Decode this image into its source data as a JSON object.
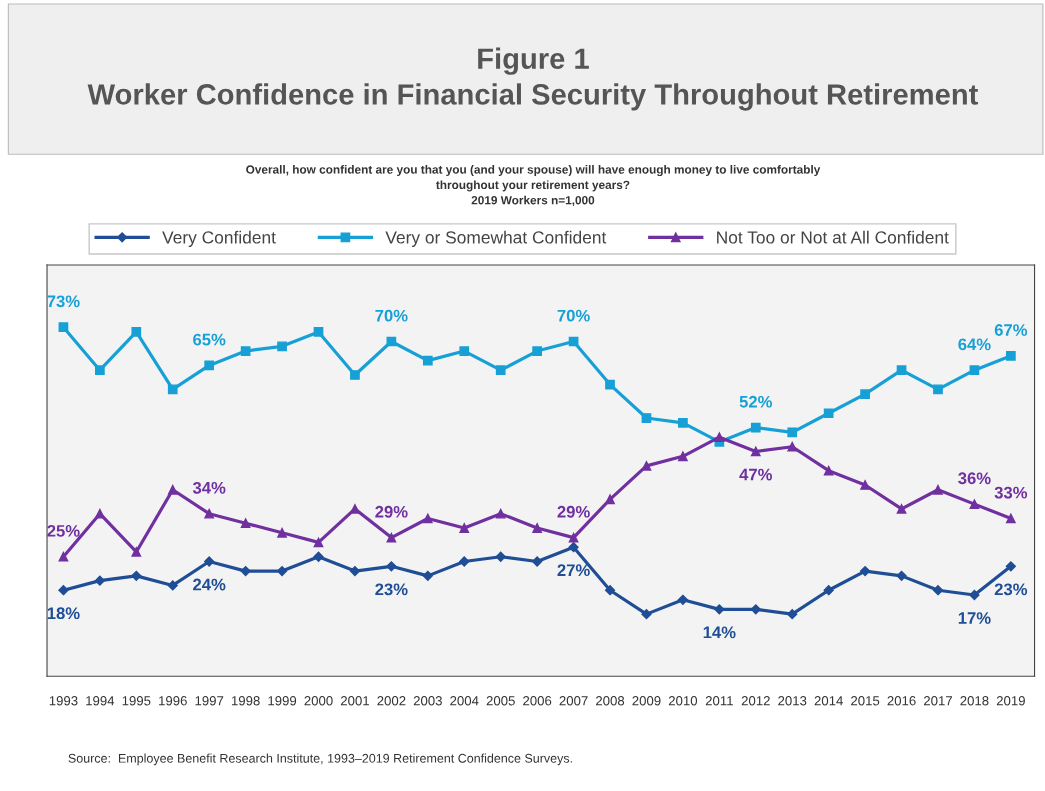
{
  "chart_data": {
    "type": "line",
    "title": "Figure 1\nWorker Confidence in Financial Security Throughout Retirement",
    "subtitle": "Overall, how confident are you that you (and your spouse) will have enough money to live comfortably\nthroughout your retirement years?\n2019 Workers n=1,000",
    "categories": [
      "1993",
      "1994",
      "1995",
      "1996",
      "1997",
      "1998",
      "1999",
      "2000",
      "2001",
      "2002",
      "2003",
      "2004",
      "2005",
      "2006",
      "2007",
      "2008",
      "2009",
      "2010",
      "2011",
      "2012",
      "2013",
      "2014",
      "2015",
      "2016",
      "2017",
      "2018",
      "2019"
    ],
    "series": [
      {
        "name": "Very Confident",
        "color": "#1f4e96",
        "marker": "diamond",
        "values": [
          18,
          20,
          21,
          19,
          24,
          22,
          22,
          25,
          22,
          23,
          21,
          24,
          25,
          24,
          27,
          18,
          13,
          16,
          14,
          14,
          13,
          18,
          22,
          21,
          18,
          17,
          23
        ],
        "value_labels": [
          "18%",
          null,
          null,
          null,
          "24%",
          null,
          null,
          null,
          null,
          "23%",
          null,
          null,
          null,
          null,
          "27%",
          null,
          null,
          null,
          "14%",
          null,
          null,
          null,
          null,
          null,
          null,
          "17%",
          "23%"
        ]
      },
      {
        "name": "Very or Somewhat Confident",
        "color": "#17a0d6",
        "marker": "square",
        "values": [
          73,
          64,
          72,
          60,
          65,
          68,
          69,
          72,
          63,
          70,
          66,
          68,
          64,
          68,
          70,
          61,
          54,
          53,
          49,
          52,
          51,
          55,
          59,
          64,
          60,
          64,
          67
        ],
        "value_labels": [
          "73%",
          null,
          null,
          null,
          "65%",
          null,
          null,
          null,
          null,
          "70%",
          null,
          null,
          null,
          null,
          "70%",
          null,
          null,
          null,
          null,
          "52%",
          null,
          null,
          null,
          null,
          null,
          "64%",
          "67%"
        ]
      },
      {
        "name": "Not Too or Not at All Confident",
        "color": "#7030a0",
        "marker": "triangle",
        "values": [
          25,
          34,
          26,
          39,
          34,
          32,
          30,
          28,
          35,
          29,
          33,
          31,
          34,
          31,
          29,
          37,
          44,
          46,
          50,
          47,
          48,
          43,
          40,
          35,
          39,
          36,
          33
        ],
        "value_labels": [
          "25%",
          null,
          null,
          null,
          "34%",
          null,
          null,
          null,
          null,
          "29%",
          null,
          null,
          null,
          null,
          "29%",
          null,
          null,
          null,
          null,
          "47%",
          null,
          null,
          null,
          null,
          null,
          "36%",
          "33%"
        ]
      }
    ],
    "legend": "top",
    "grid": false,
    "line_style": "solid",
    "annotations": [
      "Source:  Employee Benefit Research Institute, 1993–2019 Retirement Confidence Surveys."
    ]
  }
}
